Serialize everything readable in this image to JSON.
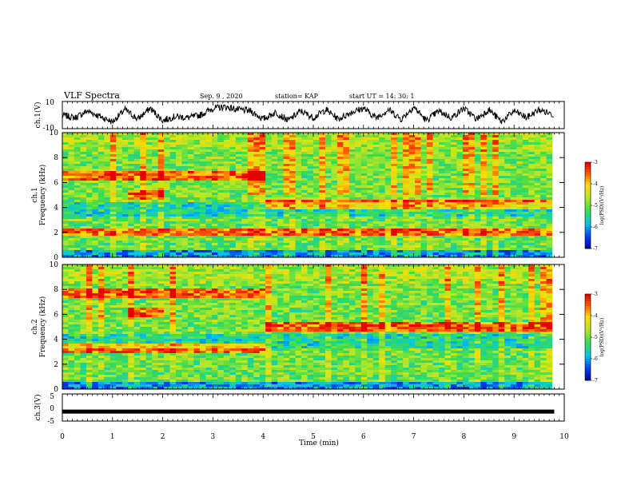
{
  "header": {
    "title": "VLF Spectra",
    "date": "Sep. 9  , 2020",
    "station": "station= KAP",
    "start_ut": "start  UT =   14: 30: 1"
  },
  "chart_data": [
    {
      "type": "line",
      "name": "ch1-waveform",
      "ylabel": "ch.1(V)",
      "ylim": [
        -10,
        10
      ],
      "y_ticks": [
        "10",
        "-10"
      ],
      "xlim": [
        0,
        10
      ],
      "x": [
        0.0,
        0.25,
        0.5,
        0.75,
        1.0,
        1.25,
        1.5,
        1.75,
        2.0,
        2.25,
        2.5,
        2.75,
        3.0,
        3.25,
        3.5,
        3.75,
        4.0,
        4.25,
        4.5,
        4.75,
        5.0,
        5.25,
        5.5,
        5.75,
        6.0,
        6.25,
        6.5,
        6.75,
        7.0,
        7.25,
        7.5,
        7.75,
        8.0,
        8.25,
        8.5,
        8.75,
        9.0,
        9.25,
        9.5,
        9.8
      ],
      "y": [
        0,
        -2,
        3,
        -1,
        -5,
        4,
        -3,
        5,
        -4,
        -1,
        -2,
        0,
        5,
        6,
        4,
        3,
        -3,
        2,
        -4,
        3,
        -2,
        4,
        -3,
        2,
        5,
        -2,
        4,
        -3,
        6,
        -4,
        3,
        -2,
        5,
        -3,
        4,
        -5,
        3,
        -2,
        4,
        0
      ]
    },
    {
      "type": "heatmap",
      "name": "ch1-spectrogram",
      "ylabel": "ch.1",
      "ylabel2": "Frequency  (kHz)",
      "y_ticks": [
        "0",
        "2",
        "4",
        "6",
        "8",
        "10"
      ],
      "xlim": [
        0,
        10
      ],
      "ylim": [
        0,
        10
      ],
      "colorbar": {
        "label": "log(PSD)(V²/Hz)",
        "range": [
          -7,
          -3
        ],
        "ticks": [
          "-3",
          "-4",
          "-5",
          "-6",
          "-7"
        ]
      },
      "features": [
        {
          "kind": "band",
          "f_khz": 6.5,
          "t_start": 0.0,
          "t_end": 4.0
        },
        {
          "kind": "band",
          "f_khz": 5.0,
          "t_start": 1.35,
          "t_end": 2.0
        },
        {
          "kind": "band",
          "f_khz": 4.2,
          "t_start": 4.0,
          "t_end": 9.8
        },
        {
          "kind": "band",
          "f_khz": 2.0,
          "t_start": 0.0,
          "t_end": 9.8
        }
      ]
    },
    {
      "type": "heatmap",
      "name": "ch2-spectrogram",
      "ylabel": "ch.2",
      "ylabel2": "Frequency  (kHz)",
      "y_ticks": [
        "0",
        "2",
        "4",
        "6",
        "8",
        "10"
      ],
      "xlim": [
        0,
        10
      ],
      "ylim": [
        0,
        10
      ],
      "colorbar": {
        "label": "log(PSD)(V²/Hz)",
        "range": [
          -7,
          -3
        ],
        "ticks": [
          "-3",
          "-4",
          "-5",
          "-6",
          "-7"
        ]
      },
      "features": [
        {
          "kind": "band",
          "f_khz": 7.7,
          "t_start": 0.0,
          "t_end": 4.0
        },
        {
          "kind": "band",
          "f_khz": 6.2,
          "t_start": 1.35,
          "t_end": 2.0
        },
        {
          "kind": "band",
          "f_khz": 5.0,
          "t_start": 4.0,
          "t_end": 9.8
        },
        {
          "kind": "band",
          "f_khz": 3.3,
          "t_start": 0.0,
          "t_end": 4.0
        }
      ]
    },
    {
      "type": "line",
      "name": "ch3-waveform",
      "ylabel": "ch.3(V)",
      "ylim": [
        -5,
        5
      ],
      "y_ticks": [
        "5",
        "0",
        "-5"
      ],
      "xlim": [
        0,
        10
      ],
      "x": [
        0,
        9.8
      ],
      "y": [
        -1.5,
        -1.5
      ],
      "xlabel": "Time  (min)",
      "x_ticks": [
        "0",
        "1",
        "2",
        "3",
        "4",
        "5",
        "6",
        "7",
        "8",
        "9",
        "10"
      ]
    }
  ]
}
